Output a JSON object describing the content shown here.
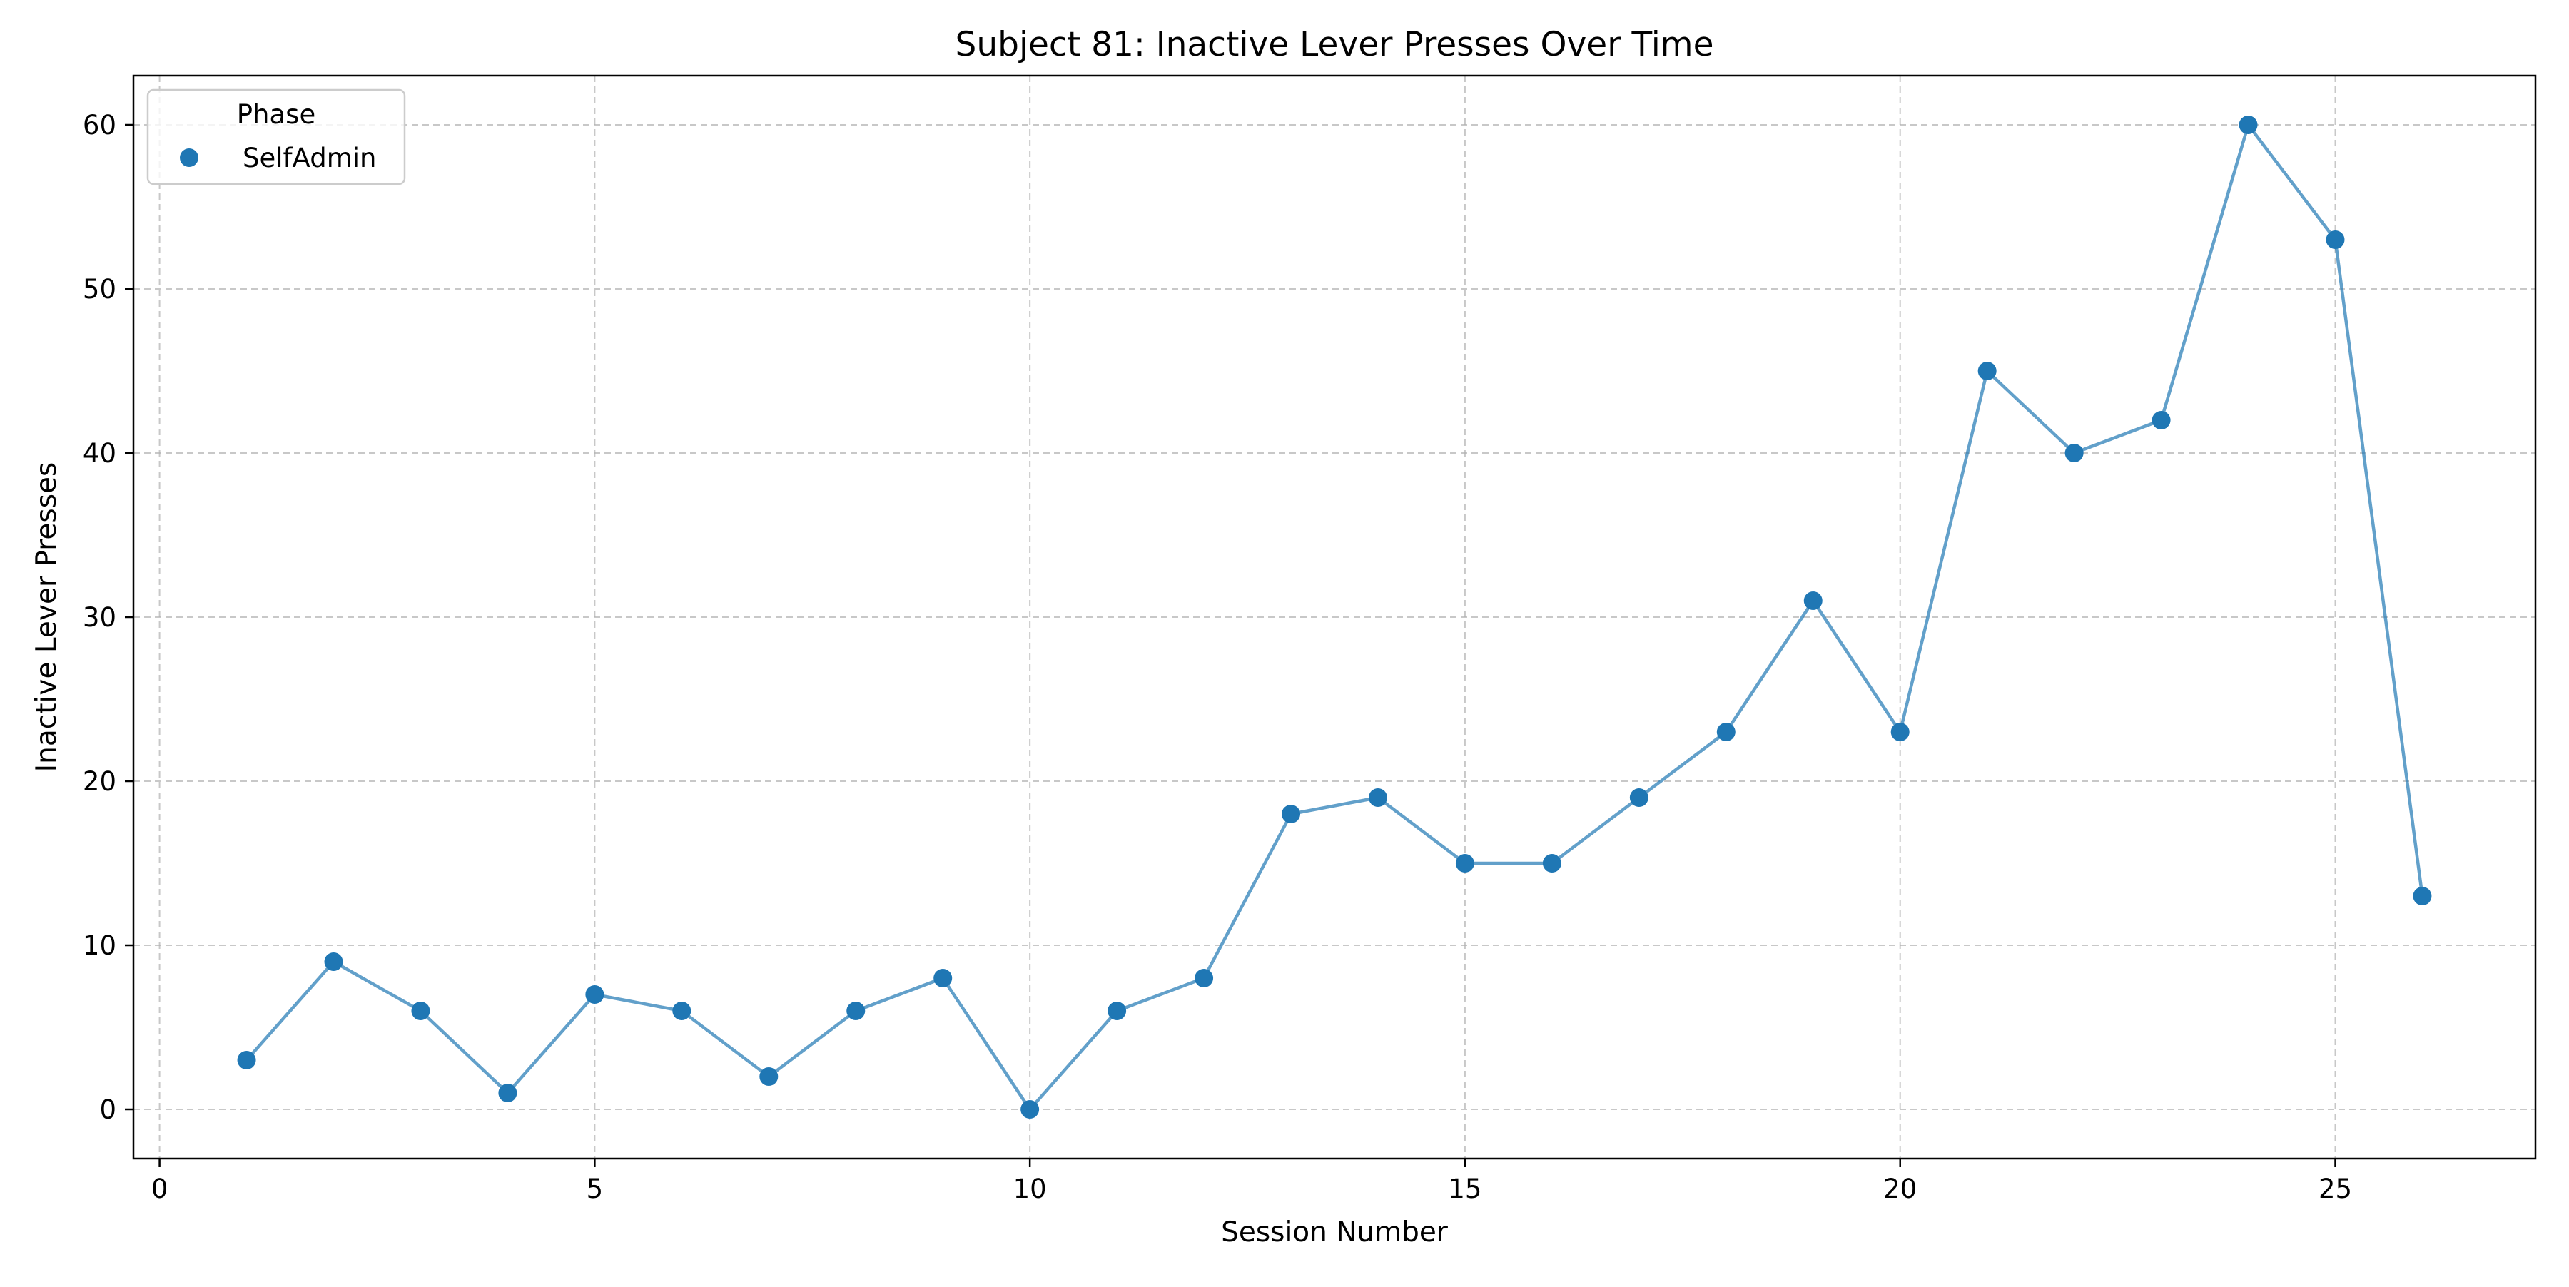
{
  "chart_data": {
    "type": "line",
    "title": "Subject 81: Inactive Lever Presses Over Time",
    "xlabel": "Session Number",
    "ylabel": "Inactive Lever Presses",
    "xlim": [
      -0.3,
      27.3
    ],
    "ylim": [
      -3,
      63
    ],
    "xticks": [
      0,
      5,
      10,
      15,
      20,
      25
    ],
    "yticks": [
      0,
      10,
      20,
      30,
      40,
      50,
      60
    ],
    "grid": true,
    "legend": {
      "title": "Phase",
      "position": "top-left",
      "entries": [
        {
          "label": "SelfAdmin",
          "color": "#1f77b4"
        }
      ]
    },
    "series": [
      {
        "name": "SelfAdmin",
        "color": "#1f77b4",
        "x": [
          1,
          2,
          3,
          4,
          5,
          6,
          7,
          8,
          9,
          10,
          11,
          12,
          13,
          14,
          15,
          16,
          17,
          18,
          19,
          20,
          21,
          22,
          23,
          24,
          25,
          26
        ],
        "y": [
          3,
          9,
          6,
          1,
          7,
          6,
          2,
          6,
          8,
          0,
          6,
          8,
          18,
          19,
          15,
          15,
          19,
          23,
          31,
          23,
          45,
          40,
          42,
          60,
          53,
          13
        ]
      }
    ]
  }
}
